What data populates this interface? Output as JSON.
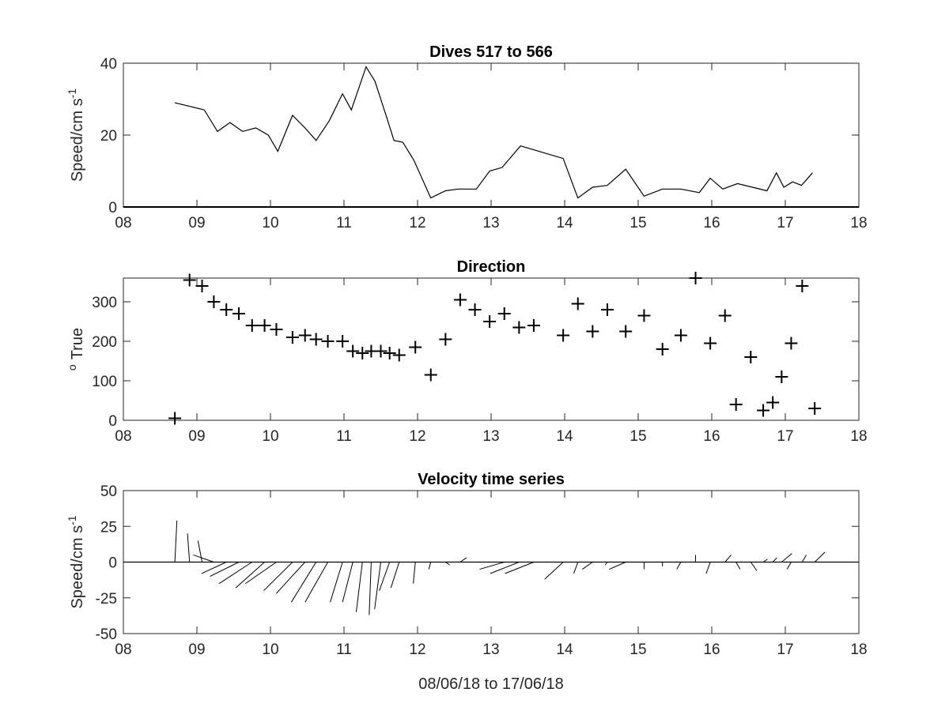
{
  "chart_data": [
    {
      "type": "line",
      "title": "Dives 517 to 566",
      "xlabel": "",
      "ylabel": "Speed/cm s",
      "ylabel_exponent": "-1",
      "xlim": [
        8,
        18
      ],
      "ylim": [
        0,
        40
      ],
      "xticks": [
        "08",
        "09",
        "10",
        "11",
        "12",
        "13",
        "14",
        "15",
        "16",
        "17",
        "18"
      ],
      "yticks": [
        "0",
        "20",
        "40"
      ],
      "series": [
        {
          "x": [
            8.7,
            9.1,
            9.28,
            9.45,
            9.62,
            9.8,
            9.97,
            10.1,
            10.3,
            10.47,
            10.62,
            10.8,
            10.98,
            11.1,
            11.3,
            11.42,
            11.58,
            11.68,
            11.8,
            11.95,
            12.18,
            12.38,
            12.55,
            12.8,
            12.98,
            13.15,
            13.4,
            13.98,
            14.18,
            14.38,
            14.58,
            14.83,
            15.08,
            15.33,
            15.58,
            15.83,
            15.98,
            16.15,
            16.35,
            16.75,
            16.88,
            16.98,
            17.1,
            17.22,
            17.37
          ],
          "y": [
            29,
            27,
            21,
            23.5,
            21,
            22,
            20,
            15.5,
            25.5,
            22,
            18.5,
            24,
            31.5,
            27,
            39,
            35,
            25,
            18.5,
            18,
            13,
            2.5,
            4.5,
            5,
            5,
            10,
            11,
            17,
            13.5,
            2.5,
            5.5,
            6,
            10.5,
            3,
            5,
            5,
            4,
            8,
            5,
            6.5,
            4.5,
            9.5,
            5.5,
            7,
            6,
            9.5
          ]
        }
      ]
    },
    {
      "type": "scatter",
      "title": "Direction",
      "xlabel": "",
      "ylabel": "True",
      "ylabel_prefix": "o",
      "marker": "+",
      "xlim": [
        8,
        18
      ],
      "ylim": [
        0,
        360
      ],
      "xticks": [
        "08",
        "09",
        "10",
        "11",
        "12",
        "13",
        "14",
        "15",
        "16",
        "17",
        "18"
      ],
      "yticks": [
        "0",
        "100",
        "200",
        "300"
      ],
      "series": [
        {
          "x": [
            8.7,
            8.9,
            9.07,
            9.23,
            9.4,
            9.57,
            9.75,
            9.92,
            10.08,
            10.3,
            10.47,
            10.62,
            10.78,
            10.98,
            11.12,
            11.25,
            11.37,
            11.5,
            11.62,
            11.75,
            11.97,
            12.18,
            12.38,
            12.58,
            12.78,
            12.98,
            13.18,
            13.38,
            13.58,
            13.98,
            14.18,
            14.38,
            14.58,
            14.83,
            15.08,
            15.33,
            15.58,
            15.78,
            15.98,
            16.18,
            16.33,
            16.53,
            16.7,
            16.83,
            16.95,
            17.08,
            17.23,
            17.4
          ],
          "y": [
            5,
            355,
            340,
            300,
            280,
            270,
            240,
            240,
            230,
            210,
            215,
            205,
            200,
            200,
            175,
            170,
            175,
            175,
            170,
            165,
            185,
            115,
            205,
            305,
            280,
            250,
            270,
            235,
            240,
            215,
            295,
            225,
            280,
            225,
            265,
            180,
            215,
            360,
            195,
            265,
            40,
            160,
            25,
            45,
            110,
            195,
            340,
            30
          ]
        }
      ]
    },
    {
      "type": "vector",
      "title": "Velocity time series",
      "xlabel": "08/06/18 to 17/06/18",
      "ylabel": "Speed/cm s",
      "ylabel_exponent": "-1",
      "xlim": [
        8,
        18
      ],
      "ylim": [
        -50,
        50
      ],
      "xticks": [
        "08",
        "09",
        "10",
        "11",
        "12",
        "13",
        "14",
        "15",
        "16",
        "17",
        "18"
      ],
      "yticks": [
        "-50",
        "-25",
        "0",
        "25",
        "50"
      ],
      "series": [
        {
          "x": [
            8.7,
            8.9,
            9.07,
            9.23,
            9.4,
            9.57,
            9.75,
            9.92,
            10.08,
            10.3,
            10.47,
            10.62,
            10.78,
            10.98,
            11.12,
            11.25,
            11.37,
            11.5,
            11.62,
            11.75,
            11.97,
            12.18,
            12.38,
            12.58,
            12.78,
            12.98,
            13.18,
            13.38,
            13.58,
            13.98,
            14.18,
            14.38,
            14.58,
            14.83,
            15.08,
            15.33,
            15.58,
            15.78,
            15.98,
            16.18,
            16.33,
            16.53,
            16.7,
            16.83,
            16.95,
            17.08,
            17.23,
            17.4
          ],
          "u": [
            1,
            -1,
            -2,
            -10,
            -12,
            -14,
            -16,
            -14,
            -15,
            -14,
            -14,
            -12,
            -11,
            -6,
            -5,
            -3,
            -1,
            -3,
            -5,
            -4,
            -1,
            -1,
            2,
            3,
            2,
            -3,
            -12,
            -14,
            -14,
            -9,
            -2,
            -5,
            -1,
            -8,
            0,
            0,
            -2,
            0,
            -2,
            3,
            2,
            3,
            2,
            2,
            5,
            -2,
            2,
            5
          ],
          "v": [
            29,
            20,
            15,
            5,
            -8,
            -10,
            -15,
            -18,
            -15,
            -20,
            -22,
            -28,
            -28,
            -28,
            -28,
            -35,
            -37,
            -33,
            -20,
            -18,
            -15,
            -5,
            -2,
            3,
            0,
            0,
            -5,
            -8,
            -8,
            -12,
            -8,
            -5,
            -2,
            -5,
            -5,
            -3,
            -5,
            5,
            -8,
            5,
            -5,
            -6,
            2,
            3,
            6,
            -5,
            5,
            7
          ]
        }
      ]
    }
  ]
}
